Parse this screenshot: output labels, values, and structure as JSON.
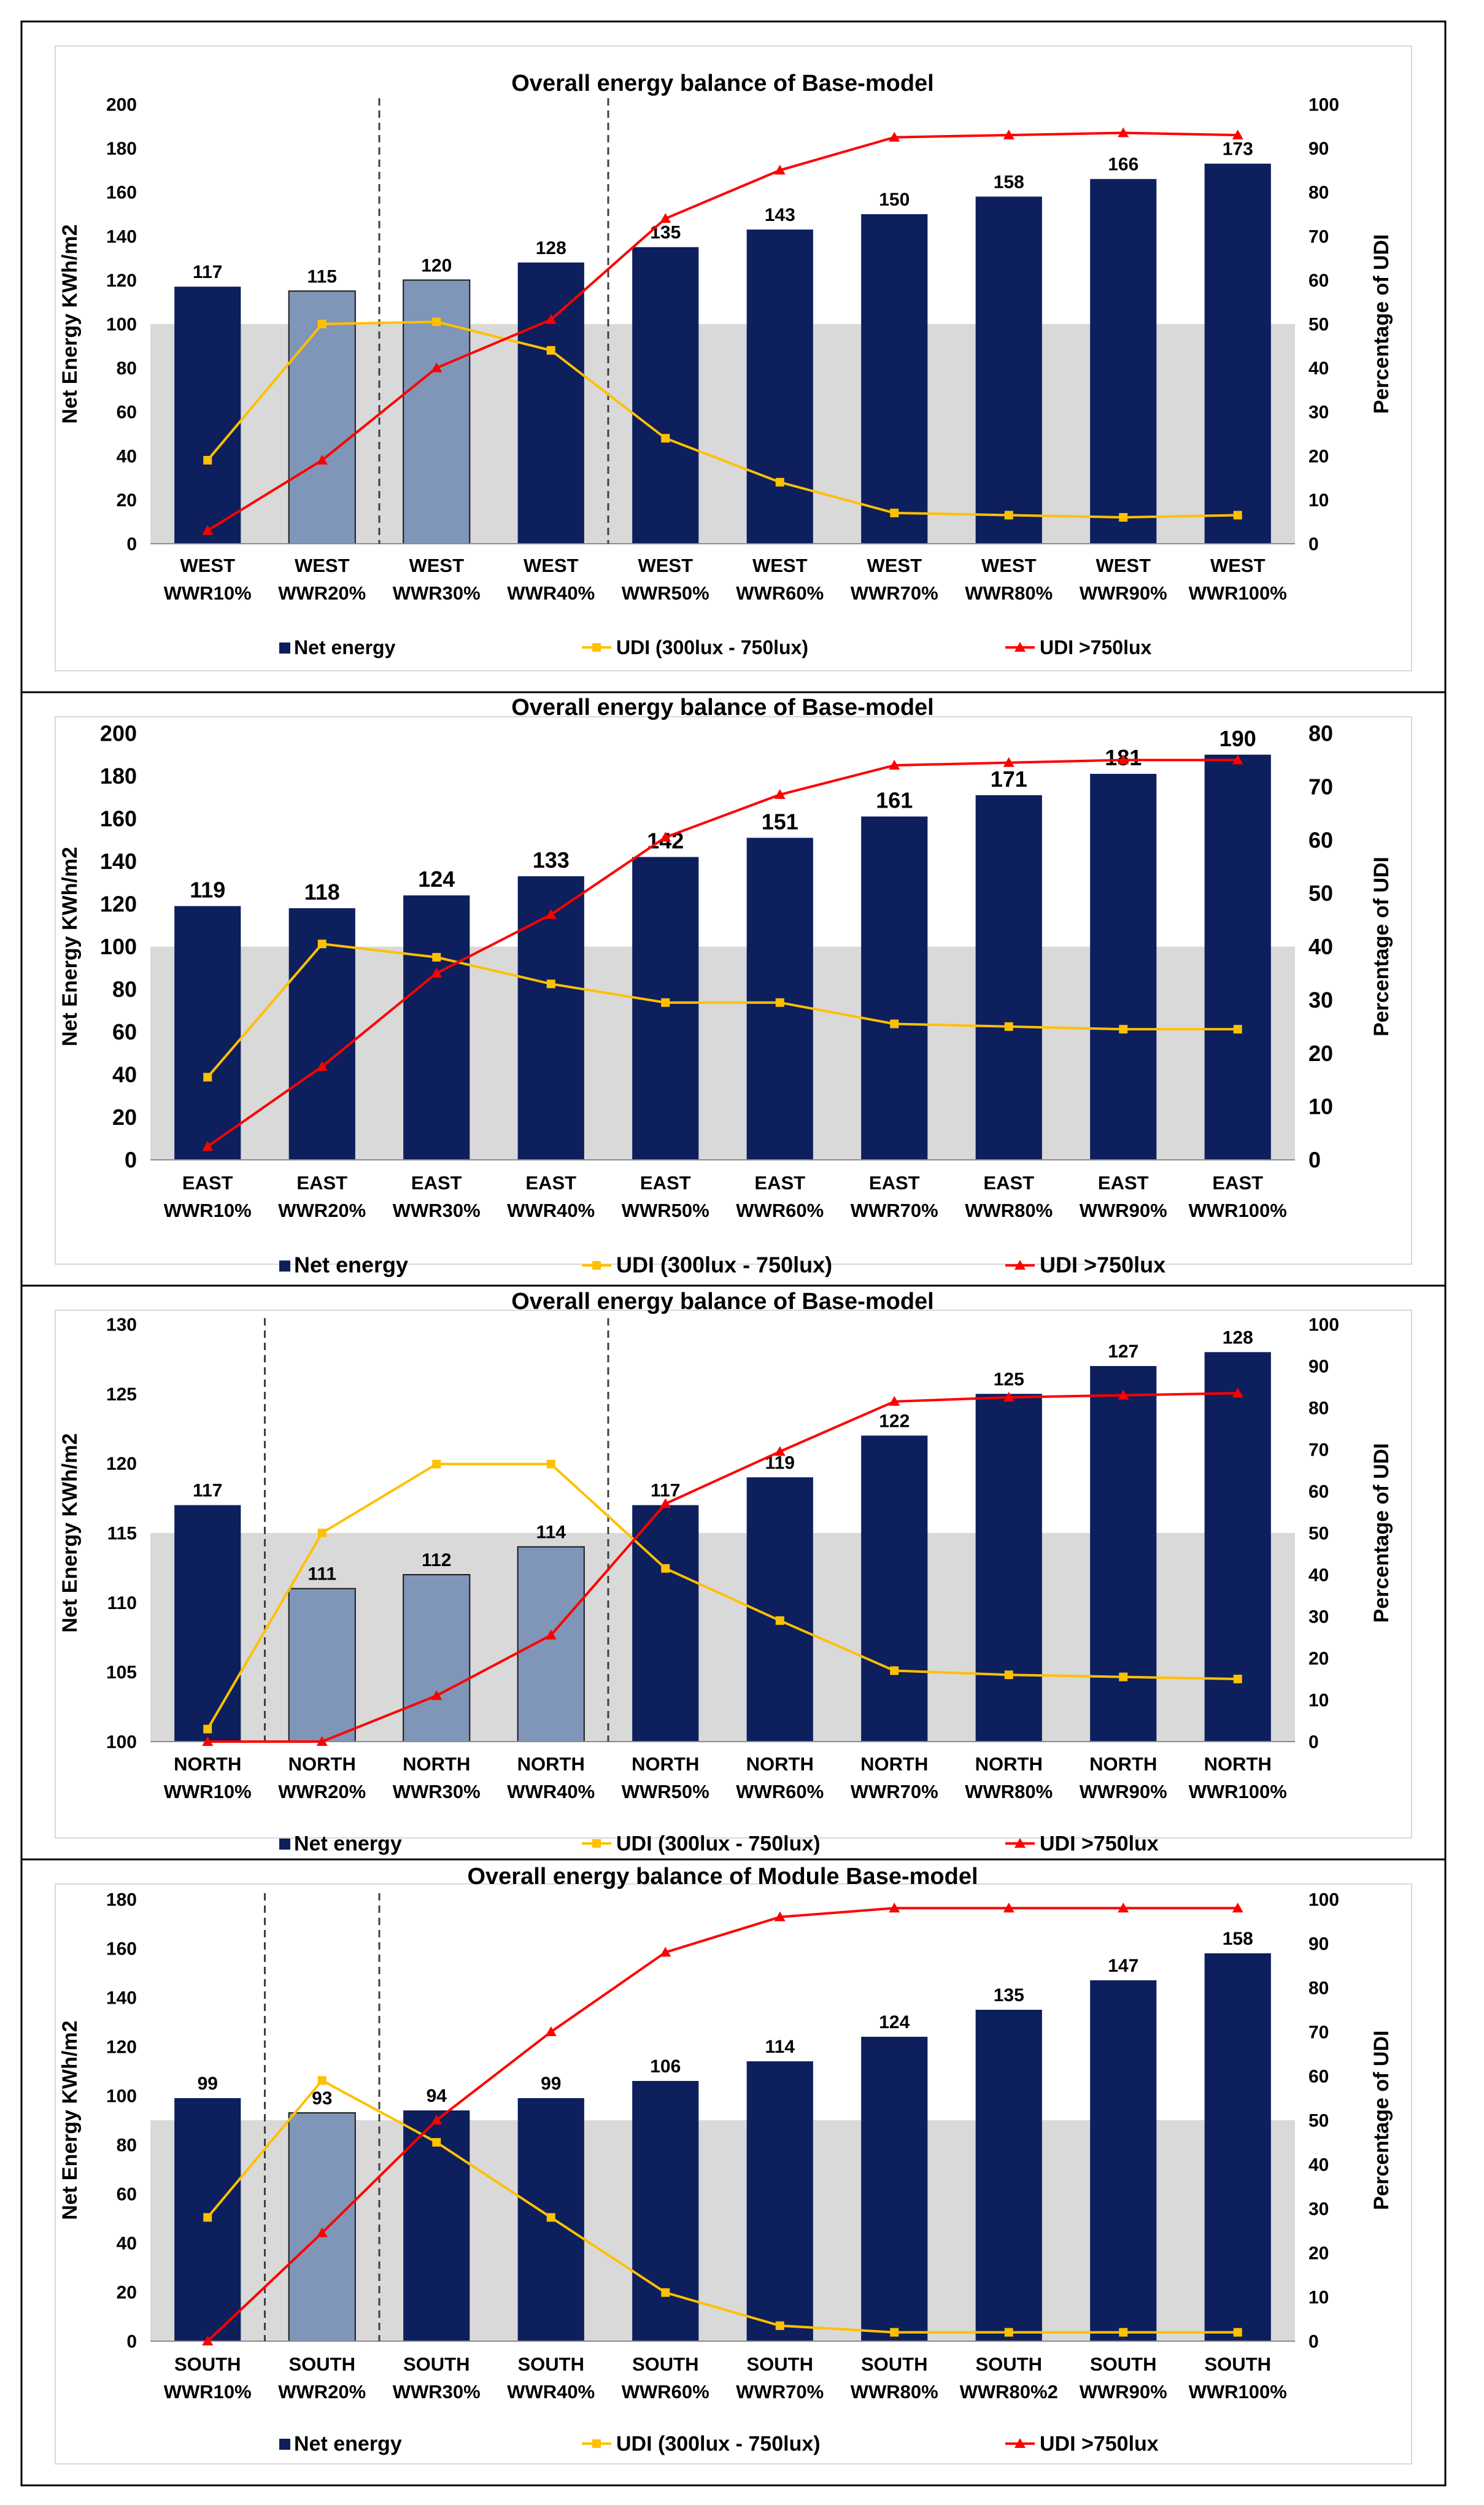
{
  "chart_data": [
    {
      "type": "bar+line",
      "title": "Overall energy balance of Base-model",
      "categories": [
        [
          "WEST",
          "WWR10%"
        ],
        [
          "WEST",
          "WWR20%"
        ],
        [
          "WEST",
          "WWR30%"
        ],
        [
          "WEST",
          "WWR40%"
        ],
        [
          "WEST",
          "WWR50%"
        ],
        [
          "WEST",
          "WWR60%"
        ],
        [
          "WEST",
          "WWR70%"
        ],
        [
          "WEST",
          "WWR80%"
        ],
        [
          "WEST",
          "WWR90%"
        ],
        [
          "WEST",
          "WWR100%"
        ]
      ],
      "ylabel": "Net Energy KWh/m2",
      "y2label": "Percentage of UDI",
      "ylim": [
        0,
        200
      ],
      "yticks": [
        0,
        20,
        40,
        60,
        80,
        100,
        120,
        140,
        160,
        180,
        200
      ],
      "y2lim": [
        0,
        100
      ],
      "y2ticks": [
        0,
        10,
        20,
        30,
        40,
        50,
        60,
        70,
        80,
        90,
        100
      ],
      "shaded_band_max": 100,
      "dashed_dividers_after": [
        1,
        3
      ],
      "highlighted_bars": [
        1,
        2
      ],
      "series": [
        {
          "name": "Net energy",
          "type": "bar",
          "axis": "left",
          "values": [
            117,
            115,
            120,
            128,
            135,
            143,
            150,
            158,
            166,
            173
          ],
          "color": "#0d1f5c",
          "highlight_color": "#7f96b9"
        },
        {
          "name": "UDI (300lux - 750lux)",
          "type": "line",
          "axis": "right",
          "values": [
            19,
            50,
            50.5,
            44,
            24,
            14,
            7,
            6.5,
            6,
            6.5
          ],
          "color": "#ffc000",
          "marker": "square"
        },
        {
          "name": "UDI >750lux",
          "type": "line",
          "axis": "right",
          "values": [
            3,
            19,
            40,
            51,
            74,
            85,
            92.5,
            93,
            93.5,
            93
          ],
          "color": "#ff0000",
          "marker": "triangle"
        }
      ]
    },
    {
      "type": "bar+line",
      "title": "Overall energy balance of Base-model",
      "categories": [
        [
          "EAST",
          "WWR10%"
        ],
        [
          "EAST",
          "WWR20%"
        ],
        [
          "EAST",
          "WWR30%"
        ],
        [
          "EAST",
          "WWR40%"
        ],
        [
          "EAST",
          "WWR50%"
        ],
        [
          "EAST",
          "WWR60%"
        ],
        [
          "EAST",
          "WWR70%"
        ],
        [
          "EAST",
          "WWR80%"
        ],
        [
          "EAST",
          "WWR90%"
        ],
        [
          "EAST",
          "WWR100%"
        ]
      ],
      "ylabel": "Net Energy KWh/m2",
      "y2label": "Percentage of UDI",
      "ylim": [
        0,
        200
      ],
      "yticks": [
        0,
        20,
        40,
        60,
        80,
        100,
        120,
        140,
        160,
        180,
        200
      ],
      "y2lim": [
        0,
        80
      ],
      "y2ticks": [
        0,
        10,
        20,
        30,
        40,
        50,
        60,
        70,
        80
      ],
      "shaded_band_max": 100,
      "dashed_dividers_after": [],
      "highlighted_bars": [],
      "series": [
        {
          "name": "Net energy",
          "type": "bar",
          "axis": "left",
          "values": [
            119,
            118,
            124,
            133,
            142,
            151,
            161,
            171,
            181,
            190
          ],
          "color": "#0d1f5c",
          "highlight_color": "#7f96b9"
        },
        {
          "name": "UDI (300lux - 750lux)",
          "type": "line",
          "axis": "right",
          "values": [
            15.5,
            40.5,
            38,
            33,
            29.5,
            29.5,
            25.5,
            25,
            24.5,
            24.5
          ],
          "color": "#ffc000",
          "marker": "square"
        },
        {
          "name": "UDI >750lux",
          "type": "line",
          "axis": "right",
          "values": [
            2.5,
            17.5,
            35,
            46,
            60.5,
            68.5,
            74,
            74.5,
            75,
            75
          ],
          "color": "#ff0000",
          "marker": "triangle"
        }
      ]
    },
    {
      "type": "bar+line",
      "title": "Overall energy balance of Base-model",
      "categories": [
        [
          "NORTH",
          "WWR10%"
        ],
        [
          "NORTH",
          "WWR20%"
        ],
        [
          "NORTH",
          "WWR30%"
        ],
        [
          "NORTH",
          "WWR40%"
        ],
        [
          "NORTH",
          "WWR50%"
        ],
        [
          "NORTH",
          "WWR60%"
        ],
        [
          "NORTH",
          "WWR70%"
        ],
        [
          "NORTH",
          "WWR80%"
        ],
        [
          "NORTH",
          "WWR90%"
        ],
        [
          "NORTH",
          "WWR100%"
        ]
      ],
      "ylabel": "Net Energy KWh/m2",
      "y2label": "Percentage of UDI",
      "ylim": [
        100,
        130
      ],
      "yticks": [
        100,
        105,
        110,
        115,
        120,
        125,
        130
      ],
      "y2lim": [
        0,
        100
      ],
      "y2ticks": [
        0,
        10,
        20,
        30,
        40,
        50,
        60,
        70,
        80,
        90,
        100
      ],
      "shaded_band_max": 115,
      "dashed_dividers_after": [
        0,
        3
      ],
      "highlighted_bars": [
        1,
        2,
        3
      ],
      "series": [
        {
          "name": "Net energy",
          "type": "bar",
          "axis": "left",
          "values": [
            117,
            111,
            112,
            114,
            117,
            119,
            122,
            125,
            127,
            128
          ],
          "color": "#0d1f5c",
          "highlight_color": "#7f96b9"
        },
        {
          "name": "UDI (300lux - 750lux)",
          "type": "line",
          "axis": "right",
          "values": [
            3,
            50,
            66.5,
            66.5,
            41.5,
            29,
            17,
            16,
            15.5,
            15
          ],
          "color": "#ffc000",
          "marker": "square"
        },
        {
          "name": "UDI >750lux",
          "type": "line",
          "axis": "right",
          "values": [
            0,
            0,
            11,
            25.5,
            57,
            69.5,
            81.5,
            82.5,
            83,
            83.5
          ],
          "color": "#ff0000",
          "marker": "triangle"
        }
      ]
    },
    {
      "type": "bar+line",
      "title": "Overall energy balance of Module Base-model",
      "categories": [
        [
          "SOUTH",
          "WWR10%"
        ],
        [
          "SOUTH",
          "WWR20%"
        ],
        [
          "SOUTH",
          "WWR30%"
        ],
        [
          "SOUTH",
          "WWR40%"
        ],
        [
          "SOUTH",
          "WWR60%"
        ],
        [
          "SOUTH",
          "WWR70%"
        ],
        [
          "SOUTH",
          "WWR80%"
        ],
        [
          "SOUTH",
          "WWR80%2"
        ],
        [
          "SOUTH",
          "WWR90%"
        ],
        [
          "SOUTH",
          "WWR100%"
        ]
      ],
      "ylabel": "Net Energy KWh/m2",
      "y2label": "Percentage of UDI",
      "ylim": [
        0,
        180
      ],
      "yticks": [
        0,
        20,
        40,
        60,
        80,
        100,
        120,
        140,
        160,
        180
      ],
      "y2lim": [
        0,
        100
      ],
      "y2ticks": [
        0,
        10,
        20,
        30,
        40,
        50,
        60,
        70,
        80,
        90,
        100
      ],
      "shaded_band_max": 90,
      "dashed_dividers_after": [
        0,
        1
      ],
      "highlighted_bars": [
        1
      ],
      "series": [
        {
          "name": "Net energy",
          "type": "bar",
          "axis": "left",
          "values": [
            99,
            93,
            94,
            99,
            106,
            114,
            124,
            135,
            147,
            158
          ],
          "color": "#0d1f5c",
          "highlight_color": "#7f96b9"
        },
        {
          "name": "UDI (300lux - 750lux)",
          "type": "line",
          "axis": "right",
          "values": [
            28,
            59,
            45,
            28,
            11,
            3.5,
            2,
            2,
            2,
            2
          ],
          "color": "#ffc000",
          "marker": "square"
        },
        {
          "name": "UDI >750lux",
          "type": "line",
          "axis": "right",
          "values": [
            0,
            24.5,
            50,
            70,
            88,
            96,
            98,
            98,
            98,
            98
          ],
          "color": "#ff0000",
          "marker": "triangle"
        }
      ]
    }
  ]
}
